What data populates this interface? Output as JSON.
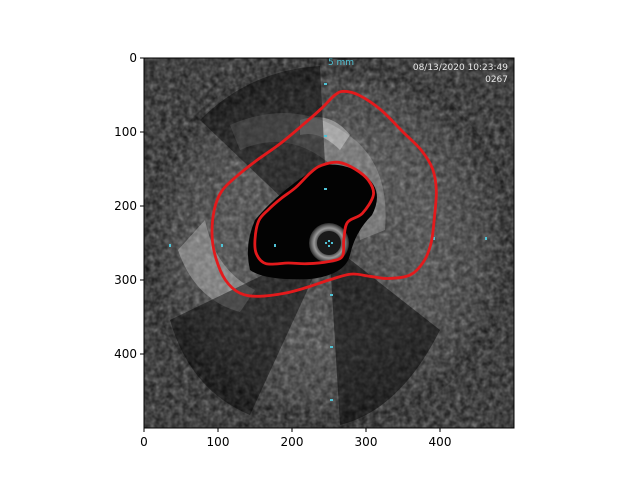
{
  "chart_data": {
    "type": "heatmap",
    "title": "",
    "xlabel": "",
    "ylabel": "",
    "xlim": [
      0,
      500
    ],
    "ylim": [
      500,
      0
    ],
    "xticks": [
      0,
      100,
      200,
      300,
      400
    ],
    "yticks": [
      0,
      100,
      200,
      300,
      400
    ],
    "image": {
      "overlay_datetime": "08/13/2020 10:23:49",
      "overlay_frame": "0267",
      "overlay_scale": "5 mm",
      "colors": {
        "contour": "#e31a1c",
        "marker": "#4fc3d6",
        "background": "#161616"
      }
    },
    "series": [
      {
        "name": "",
        "closed": true,
        "points": [
          [
            270,
            45
          ],
          [
            290,
            50
          ],
          [
            320,
            70
          ],
          [
            350,
            100
          ],
          [
            375,
            125
          ],
          [
            390,
            150
          ],
          [
            395,
            180
          ],
          [
            392,
            220
          ],
          [
            388,
            250
          ],
          [
            378,
            275
          ],
          [
            360,
            293
          ],
          [
            330,
            298
          ],
          [
            305,
            295
          ],
          [
            280,
            292
          ],
          [
            250,
            300
          ],
          [
            220,
            310
          ],
          [
            190,
            318
          ],
          [
            155,
            322
          ],
          [
            130,
            318
          ],
          [
            110,
            300
          ],
          [
            97,
            270
          ],
          [
            92,
            240
          ],
          [
            95,
            205
          ],
          [
            105,
            180
          ],
          [
            125,
            160
          ],
          [
            150,
            140
          ],
          [
            185,
            115
          ],
          [
            215,
            90
          ],
          [
            240,
            68
          ],
          [
            258,
            50
          ],
          [
            270,
            45
          ]
        ]
      },
      {
        "name": "",
        "closed": true,
        "points": [
          [
            240,
            145
          ],
          [
            263,
            141
          ],
          [
            285,
            150
          ],
          [
            303,
            165
          ],
          [
            310,
            185
          ],
          [
            295,
            210
          ],
          [
            275,
            222
          ],
          [
            270,
            245
          ],
          [
            268,
            268
          ],
          [
            250,
            275
          ],
          [
            220,
            278
          ],
          [
            195,
            277
          ],
          [
            165,
            278
          ],
          [
            152,
            265
          ],
          [
            150,
            245
          ],
          [
            155,
            220
          ],
          [
            168,
            205
          ],
          [
            185,
            190
          ],
          [
            205,
            175
          ],
          [
            225,
            155
          ],
          [
            240,
            145
          ]
        ]
      }
    ]
  }
}
